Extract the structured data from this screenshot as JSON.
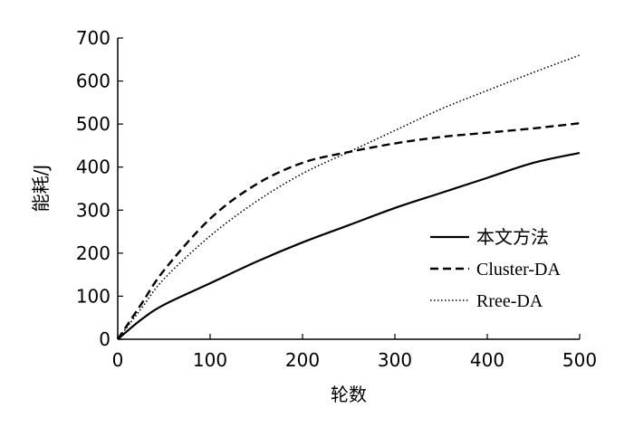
{
  "chart_data": {
    "type": "line",
    "xlabel": "轮数",
    "ylabel": "能耗/J",
    "xlim": [
      0,
      500
    ],
    "ylim": [
      0,
      700
    ],
    "xticks": [
      0,
      100,
      200,
      300,
      400,
      500
    ],
    "yticks": [
      0,
      100,
      200,
      300,
      400,
      500,
      600,
      700
    ],
    "grid": false,
    "legend_position": "bottom-right",
    "series": [
      {
        "name": "本文方法",
        "style": "solid",
        "color": "#000000",
        "x": [
          0,
          25,
          50,
          100,
          150,
          200,
          250,
          300,
          350,
          400,
          450,
          500
        ],
        "y": [
          0,
          45,
          80,
          130,
          180,
          225,
          265,
          305,
          340,
          375,
          410,
          433
        ]
      },
      {
        "name": "Cluster-DA",
        "style": "dashed",
        "color": "#000000",
        "x": [
          0,
          25,
          50,
          100,
          150,
          200,
          250,
          300,
          350,
          400,
          450,
          500
        ],
        "y": [
          0,
          80,
          160,
          280,
          360,
          410,
          435,
          455,
          470,
          480,
          490,
          502
        ]
      },
      {
        "name": "Rree-DA",
        "style": "dotted",
        "color": "#000000",
        "x": [
          0,
          25,
          50,
          100,
          150,
          200,
          250,
          300,
          350,
          400,
          450,
          500
        ],
        "y": [
          0,
          70,
          140,
          240,
          320,
          385,
          435,
          485,
          535,
          578,
          620,
          660
        ]
      }
    ]
  }
}
